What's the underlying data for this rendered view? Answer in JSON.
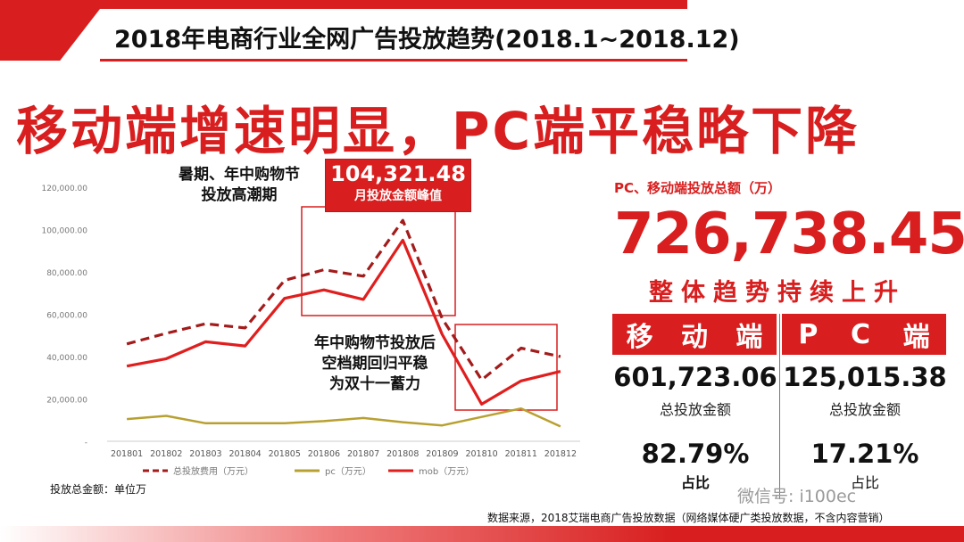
{
  "header": {
    "title": "2018年电商行业全网广告投放趋势(2018.1~2018.12)",
    "headline": "移动端增速明显，PC端平稳略下降"
  },
  "annotations": {
    "summer_peak": [
      "暑期、年中购物节",
      "投放高潮期"
    ],
    "peak_value": "104,321.48",
    "peak_label": "月投放金额峰值",
    "after_festival": [
      "年中购物节投放后",
      "空档期回归平稳",
      "为双十一蓄力"
    ]
  },
  "unit_note": "投放总金额：单位万",
  "summary": {
    "total_label": "PC、移动端投放总额（万）",
    "total_value": "726,738.45",
    "trend_text": "整体趋势持续上升",
    "mobile": {
      "label": [
        "移",
        "动",
        "端"
      ],
      "amount": "601,723.06",
      "amount_label": "总投放金额",
      "share": "82.79%",
      "share_label": "占比"
    },
    "pc": {
      "label": [
        "P",
        "C",
        "端"
      ],
      "amount": "125,015.38",
      "amount_label": "总投放金额",
      "share": "17.21%",
      "share_label": "占比"
    }
  },
  "watermark": "微信号: i100ec",
  "source": "数据来源，2018艾瑞电商广告投放数据（网络媒体硬广类投放数据，不含内容营销）",
  "colors": {
    "accent": "#d81e1e",
    "total_series": "#a31b1b",
    "pc_series": "#b8a030",
    "mob_series": "#e01e1e"
  },
  "chart_data": {
    "type": "line",
    "categories": [
      "201801",
      "201802",
      "201803",
      "201804",
      "201805",
      "201806",
      "201807",
      "201808",
      "201809",
      "201810",
      "201811",
      "201812"
    ],
    "ylim": [
      0,
      120000
    ],
    "yticks": [
      "",
      "20,000.00",
      "40,000.00",
      "60,000.00",
      "80,000.00",
      "100,000.00",
      "120,000.00"
    ],
    "series": [
      {
        "name": "总投放费用（万元）",
        "style": "dashed",
        "values": [
          46000,
          51000,
          55500,
          53500,
          76000,
          81000,
          78000,
          104321.48,
          58000,
          29000,
          44000,
          40000
        ]
      },
      {
        "name": "pc（万元）",
        "style": "solid",
        "values": [
          10500,
          12000,
          8500,
          8500,
          8500,
          9500,
          11000,
          9000,
          7500,
          11500,
          15500,
          7000
        ]
      },
      {
        "name": "mob（万元）",
        "style": "solid",
        "values": [
          35500,
          39000,
          47000,
          45000,
          67500,
          71500,
          67000,
          95000,
          50500,
          17500,
          28500,
          33000
        ]
      }
    ],
    "legend_position": "bottom"
  }
}
